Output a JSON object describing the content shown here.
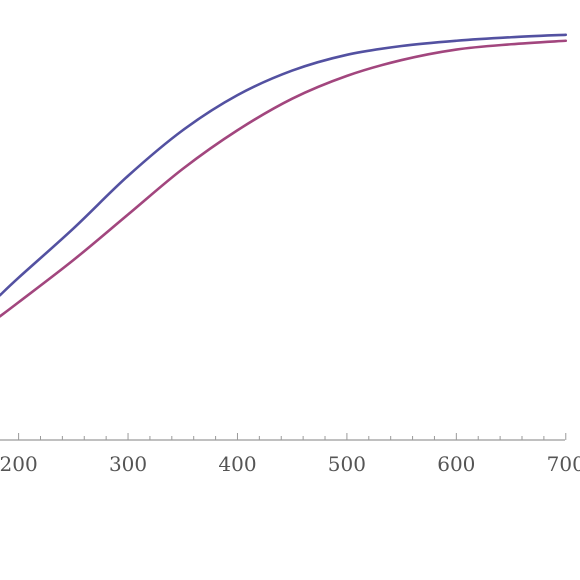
{
  "chart_data": {
    "type": "line",
    "title": "",
    "xlabel": "",
    "ylabel": "",
    "xlim": [
      183,
      713
    ],
    "ylim": [
      0,
      1
    ],
    "grid": false,
    "x_ticks": [
      200,
      300,
      400,
      500,
      600,
      700
    ],
    "x_tick_labels": [
      "200",
      "300",
      "400",
      "500",
      "600",
      "700"
    ],
    "series": [
      {
        "color": "#5351a1",
        "x": [
          183,
          200,
          250,
          300,
          350,
          400,
          450,
          500,
          550,
          600,
          650,
          700
        ],
        "y": [
          0.27,
          0.32,
          0.46,
          0.61,
          0.74,
          0.84,
          0.91,
          0.955,
          0.98,
          0.995,
          1.005,
          1.012
        ]
      },
      {
        "color": "#a2467e",
        "x": [
          183,
          200,
          250,
          300,
          350,
          400,
          450,
          500,
          550,
          600,
          650,
          700
        ],
        "y": [
          0.21,
          0.25,
          0.37,
          0.5,
          0.63,
          0.74,
          0.83,
          0.895,
          0.94,
          0.97,
          0.985,
          0.995
        ]
      }
    ]
  }
}
